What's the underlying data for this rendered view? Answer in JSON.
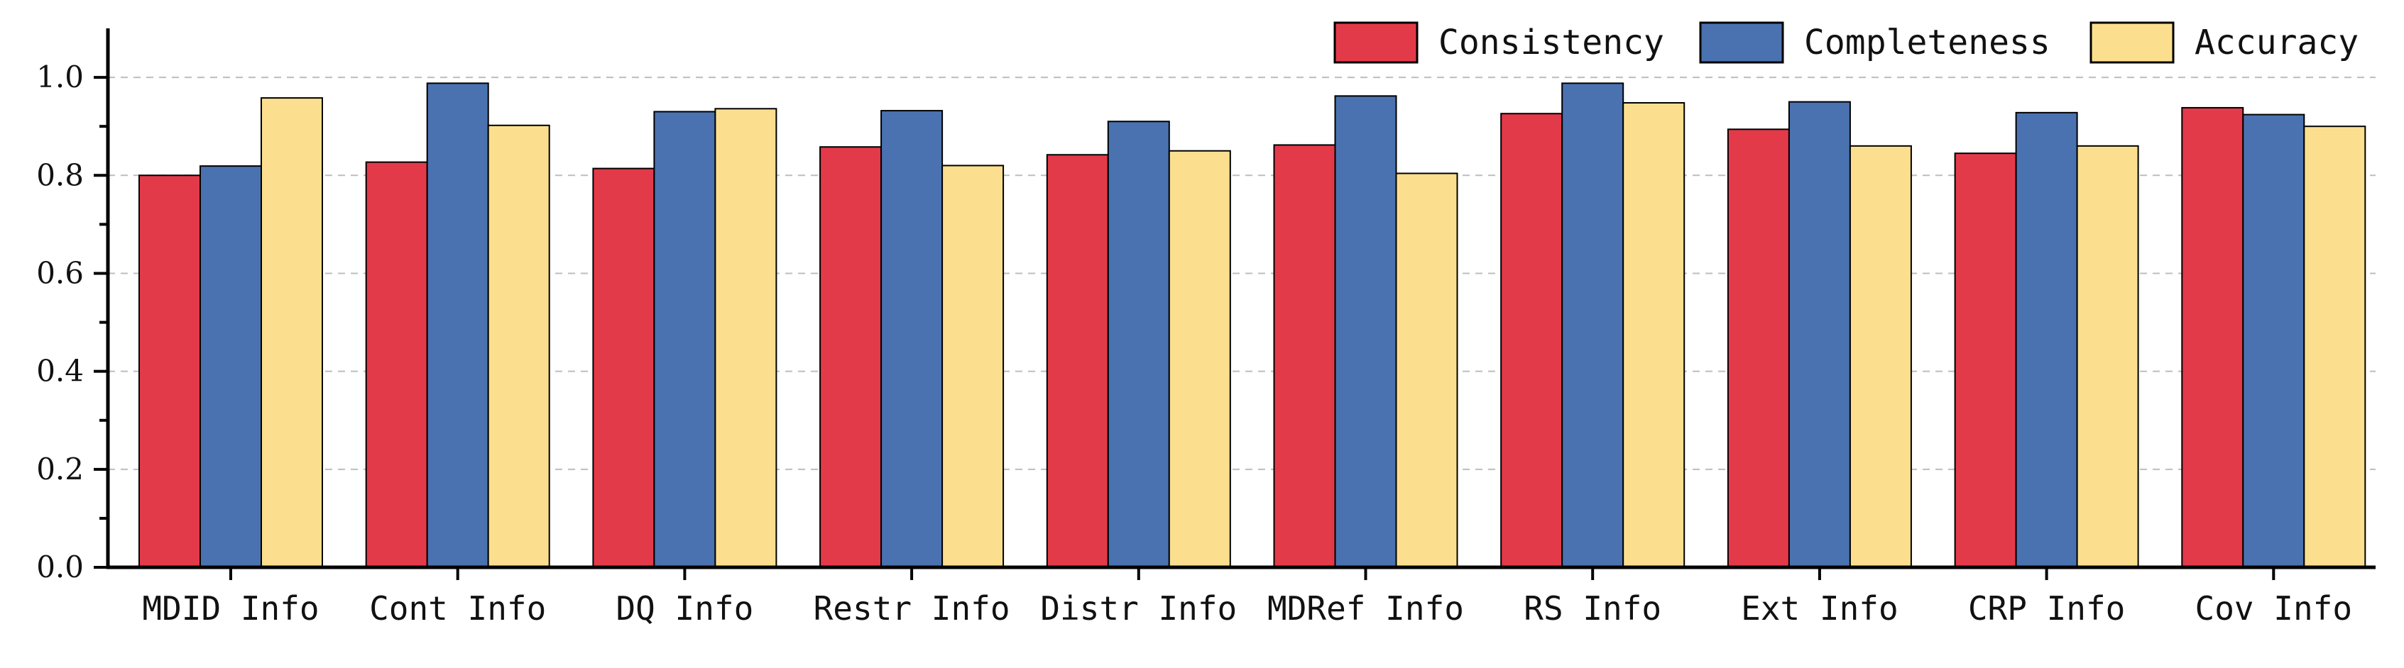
{
  "chart_data": {
    "type": "bar",
    "title": "",
    "xlabel": "",
    "ylabel": "",
    "ylim": [
      0,
      1.1
    ],
    "yticks": [
      "0.0",
      "0.2",
      "0.4",
      "0.6",
      "0.8",
      "1.0"
    ],
    "grid": "horizontal-dashed",
    "legend_position": "top-right",
    "categories": [
      "MDID Info",
      "Cont Info",
      "DQ Info",
      "Restr Info",
      "Distr Info",
      "MDRef Info",
      "RS Info",
      "Ext Info",
      "CRP Info",
      "Cov Info"
    ],
    "series": [
      {
        "name": "Consistency",
        "color": "#e33a4a",
        "values": [
          0.8,
          0.827,
          0.814,
          0.858,
          0.842,
          0.862,
          0.926,
          0.894,
          0.845,
          0.938
        ]
      },
      {
        "name": "Completeness",
        "color": "#4a72b0",
        "values": [
          0.819,
          0.988,
          0.93,
          0.932,
          0.91,
          0.962,
          0.988,
          0.95,
          0.928,
          0.924
        ]
      },
      {
        "name": "Accuracy",
        "color": "#fcdf8e",
        "values": [
          0.958,
          0.902,
          0.936,
          0.82,
          0.85,
          0.804,
          0.948,
          0.86,
          0.86,
          0.9
        ]
      }
    ]
  }
}
